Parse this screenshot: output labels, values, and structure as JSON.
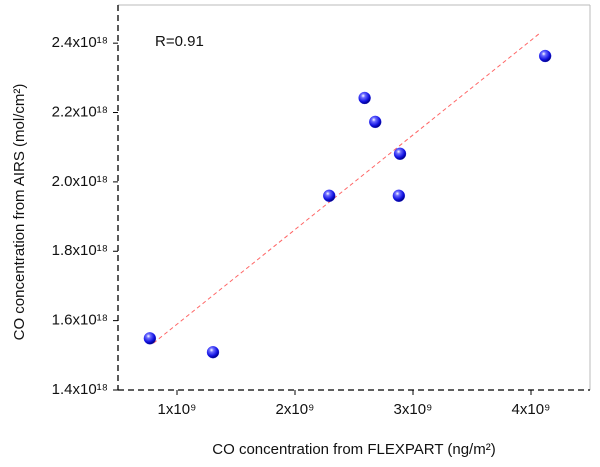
{
  "chart_data": {
    "type": "scatter",
    "x_label": "CO concentration from FLEXPART (ng/m²)",
    "y_label": "CO concentration from AIRS (mol/cm²)",
    "annotation": "R=0.91",
    "xlim": [
      500000000,
      4500000000
    ],
    "ylim": [
      1.4e+18,
      2.51e+18
    ],
    "xticks": [
      {
        "value": 1000000000,
        "label": "1x10⁹"
      },
      {
        "value": 2000000000,
        "label": "2x10⁹"
      },
      {
        "value": 3000000000,
        "label": "3x10⁹"
      },
      {
        "value": 4000000000,
        "label": "4x10⁹"
      }
    ],
    "yticks": [
      {
        "value": 1.4e+18,
        "label": "1.4x10¹⁸"
      },
      {
        "value": 1.6e+18,
        "label": "1.6x10¹⁸"
      },
      {
        "value": 1.8e+18,
        "label": "1.8x10¹⁸"
      },
      {
        "value": 2e+18,
        "label": "2.0x10¹⁸"
      },
      {
        "value": 2.2e+18,
        "label": "2.2x10¹⁸"
      },
      {
        "value": 2.4e+18,
        "label": "2.4x10¹⁸"
      }
    ],
    "series": [
      {
        "color": "#1a1aff",
        "x": [
          770000000,
          1305000000,
          2290000000,
          2590000000,
          2680000000,
          2890000000,
          2880000000,
          4120000000
        ],
        "values": [
          1.549e+18,
          1.509e+18,
          1.96e+18,
          2.242e+18,
          2.173e+18,
          2.081e+18,
          1.96e+18,
          2.363e+18
        ]
      }
    ],
    "fit_line": {
      "color": "#ff6666",
      "x": [
        800000000,
        4076000000
      ],
      "y": [
        1.535e+18,
        2.429e+18
      ]
    }
  }
}
